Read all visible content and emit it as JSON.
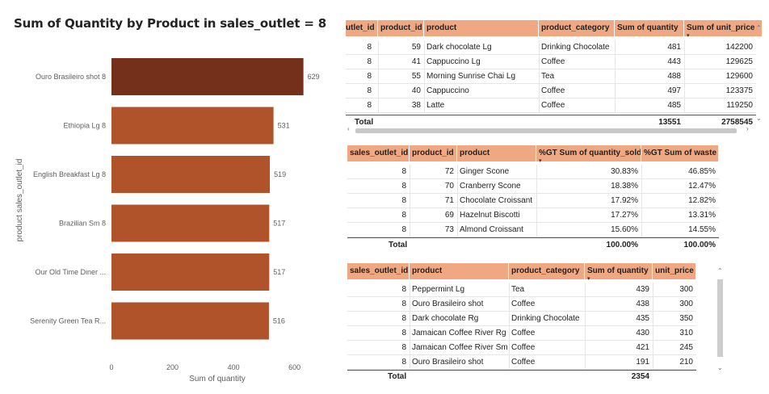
{
  "chart_data": {
    "type": "bar",
    "orientation": "horizontal",
    "title": "Sum of Quantity by Product in sales_outlet = 8",
    "xlabel": "Sum of quantity",
    "ylabel": "product sales_outlet_id",
    "categories": [
      "Ouro Brasileiro shot 8",
      "Ethiopia Lg 8",
      "English Breakfast Lg 8",
      "Brazilian Sm 8",
      "Our Old Time Diner ...",
      "Serenity Green Tea R..."
    ],
    "values": [
      629,
      531,
      519,
      517,
      517,
      516
    ],
    "xlim": [
      0,
      650
    ],
    "xticks": [
      "0",
      "200",
      "400",
      "600"
    ],
    "xtick_values": [
      0,
      200,
      400,
      600
    ],
    "colors": [
      "#74301b",
      "#b0522a",
      "#b0522a",
      "#b0522a",
      "#b0522a",
      "#b0522a"
    ]
  },
  "table1": {
    "columns": [
      "utlet_id",
      "product_id",
      "product",
      "product_category",
      "Sum of quantity",
      "Sum of unit_price"
    ],
    "rows": [
      [
        "8",
        "59",
        "Dark chocolate Lg",
        "Drinking Chocolate",
        "481",
        "142200"
      ],
      [
        "8",
        "41",
        "Cappuccino Lg",
        "Coffee",
        "443",
        "129625"
      ],
      [
        "8",
        "55",
        "Morning Sunrise Chai Lg",
        "Tea",
        "488",
        "129600"
      ],
      [
        "8",
        "40",
        "Cappuccino",
        "Coffee",
        "497",
        "123375"
      ],
      [
        "8",
        "38",
        "Latte",
        "Coffee",
        "485",
        "119250"
      ]
    ],
    "total_label": "Total",
    "total_quantity": "13551",
    "total_unit_price": "2758545"
  },
  "table2": {
    "columns": [
      "sales_outlet_id",
      "product_id",
      "product",
      "%GT Sum of quantity_sold",
      "%GT Sum of waste"
    ],
    "rows": [
      [
        "8",
        "72",
        "Ginger Scone",
        "30.83%",
        "46.85%"
      ],
      [
        "8",
        "70",
        "Cranberry Scone",
        "18.38%",
        "12.47%"
      ],
      [
        "8",
        "71",
        "Chocolate Croissant",
        "17.92%",
        "12.82%"
      ],
      [
        "8",
        "69",
        "Hazelnut Biscotti",
        "17.27%",
        "13.31%"
      ],
      [
        "8",
        "73",
        "Almond Croissant",
        "15.60%",
        "14.55%"
      ]
    ],
    "total_label": "Total",
    "total_sold": "100.00%",
    "total_waste": "100.00%"
  },
  "table3": {
    "columns": [
      "sales_outlet_id",
      "product",
      "product_category",
      "Sum of quantity",
      "unit_price"
    ],
    "rows": [
      [
        "8",
        "Peppermint Lg",
        "Tea",
        "439",
        "300"
      ],
      [
        "8",
        "Ouro Brasileiro shot",
        "Coffee",
        "438",
        "300"
      ],
      [
        "8",
        "Dark chocolate Rg",
        "Drinking Chocolate",
        "435",
        "350"
      ],
      [
        "8",
        "Jamaican Coffee River Rg",
        "Coffee",
        "430",
        "310"
      ],
      [
        "8",
        "Jamaican Coffee River Sm",
        "Coffee",
        "421",
        "245"
      ],
      [
        "8",
        "Ouro Brasileiro shot",
        "Coffee",
        "191",
        "210"
      ]
    ],
    "total_label": "Total",
    "total_quantity": "2354"
  },
  "icons": {
    "sort_desc": "▾",
    "scroll_up": "⌃",
    "scroll_down": "⌄",
    "scroll_left": "‹",
    "scroll_right": "›"
  }
}
